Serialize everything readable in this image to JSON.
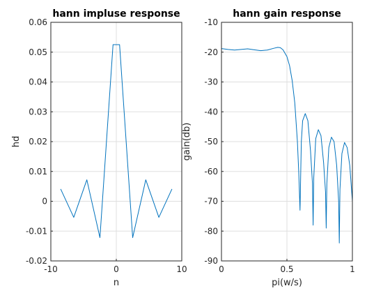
{
  "chart_data": [
    {
      "type": "line",
      "title": "hann impluse response",
      "xlabel": "n",
      "ylabel": "hd",
      "xlim": [
        -10,
        10
      ],
      "ylim": [
        -0.02,
        0.06
      ],
      "xticks": [
        -10,
        0,
        10
      ],
      "xtick_labels": [
        "-10",
        "0",
        "10"
      ],
      "yticks": [
        -0.02,
        -0.01,
        0,
        0.01,
        0.02,
        0.03,
        0.04,
        0.05,
        0.06
      ],
      "ytick_labels": [
        "-0.02",
        "-0.01",
        "0",
        "0.01",
        "0.02",
        "0.03",
        "0.04",
        "0.05",
        "0.06"
      ],
      "grid": true,
      "color": "#0072bd",
      "series": [
        {
          "x": [
            -8.5,
            -6.5,
            -4.5,
            -2.5,
            -0.5,
            0.5,
            2.5,
            4.5,
            6.5,
            8.5
          ],
          "y": [
            0.0041,
            -0.0054,
            0.0072,
            -0.0122,
            0.0525,
            0.0525,
            -0.0122,
            0.0072,
            -0.0054,
            0.0041
          ]
        }
      ]
    },
    {
      "type": "line",
      "title": "hann gain response",
      "xlabel": "pi(w/s)",
      "ylabel": "gain(db)",
      "xlim": [
        0,
        1
      ],
      "ylim": [
        -90,
        -10
      ],
      "xticks": [
        0,
        0.5,
        1
      ],
      "xtick_labels": [
        "0",
        "0.5",
        "1"
      ],
      "yticks": [
        -90,
        -80,
        -70,
        -60,
        -50,
        -40,
        -30,
        -20,
        -10
      ],
      "ytick_labels": [
        "-90",
        "-80",
        "-70",
        "-60",
        "-50",
        "-40",
        "-30",
        "-20",
        "-10"
      ],
      "grid": true,
      "color": "#0072bd",
      "series": [
        {
          "x": [
            0,
            0.05,
            0.1,
            0.15,
            0.2,
            0.25,
            0.3,
            0.35,
            0.4,
            0.43,
            0.45,
            0.47,
            0.5,
            0.52,
            0.54,
            0.56,
            0.58,
            0.59,
            0.6,
            0.61,
            0.62,
            0.64,
            0.66,
            0.68,
            0.695,
            0.7,
            0.705,
            0.72,
            0.74,
            0.76,
            0.78,
            0.795,
            0.8,
            0.805,
            0.82,
            0.84,
            0.86,
            0.88,
            0.895,
            0.9,
            0.905,
            0.92,
            0.94,
            0.96,
            0.98,
            0.995,
            1
          ],
          "y": [
            -18.8,
            -19.1,
            -19.3,
            -19.1,
            -18.9,
            -19.2,
            -19.5,
            -19.3,
            -18.7,
            -18.4,
            -18.5,
            -19.2,
            -21.5,
            -24.5,
            -29.5,
            -37,
            -50,
            -60,
            -73,
            -50,
            -43,
            -40.6,
            -43,
            -53,
            -64,
            -78,
            -62,
            -49,
            -46,
            -48,
            -57,
            -67,
            -79,
            -64,
            -52,
            -48.5,
            -50,
            -58,
            -70,
            -84,
            -66,
            -54,
            -50.3,
            -52,
            -58,
            -67,
            -70
          ]
        }
      ]
    }
  ]
}
